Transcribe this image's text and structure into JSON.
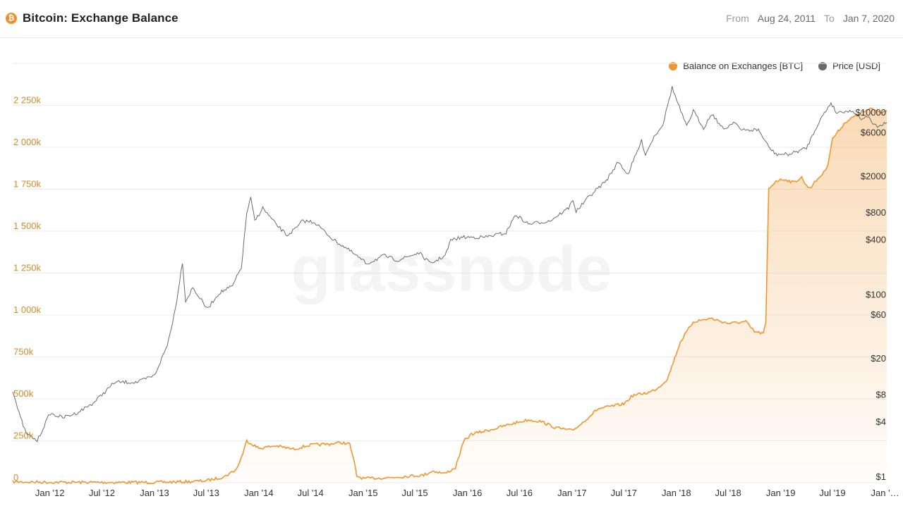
{
  "header": {
    "title": "Bitcoin: Exchange Balance",
    "from_label": "From",
    "from_value": "Aug 24, 2011",
    "to_label": "To",
    "to_value": "Jan 7, 2020"
  },
  "watermark": "glassnode",
  "colors": {
    "balance": "#f0962e",
    "price": "#6b6b6b",
    "grid": "#ececef",
    "left_axis": "#d38a2c"
  },
  "chart_data": {
    "type": "line",
    "legend": [
      "Balance on Exchanges [BTC]",
      "Price [USD]"
    ],
    "legend_position": "top-right",
    "grid": true,
    "x_ticks": [
      "Jan '12",
      "Jul '12",
      "Jan '13",
      "Jul '13",
      "Jan '14",
      "Jul '14",
      "Jan '15",
      "Jul '15",
      "Jan '16",
      "Jul '16",
      "Jan '17",
      "Jul '17",
      "Jan '18",
      "Jul '18",
      "Jan '19",
      "Jul '19",
      "Jan '…"
    ],
    "y_left": {
      "ticks": [
        0,
        250000,
        500000,
        750000,
        1000000,
        1250000,
        1500000,
        1750000,
        2000000,
        2250000
      ],
      "tick_labels": [
        "0",
        "250k",
        "500k",
        "750k",
        "1 000k",
        "1 250k",
        "1 500k",
        "1 750k",
        "2 000k",
        "2 250k"
      ],
      "ylim": [
        0,
        2500000
      ]
    },
    "y_right": {
      "scale": "log",
      "ticks": [
        1,
        4,
        8,
        20,
        60,
        100,
        400,
        800,
        2000,
        6000,
        10000
      ],
      "tick_labels": [
        "$1",
        "$4",
        "$8",
        "$20",
        "$60",
        "$100",
        "$400",
        "$800",
        "$2000",
        "$6000",
        "$10000"
      ]
    },
    "series": [
      {
        "name": "Balance on Exchanges [BTC]",
        "axis": "left",
        "fill": true,
        "x": [
          "2011-08-24",
          "2012-01-01",
          "2012-07-01",
          "2013-01-01",
          "2013-05-01",
          "2013-07-01",
          "2013-09-01",
          "2013-10-15",
          "2013-11-01",
          "2013-11-20",
          "2014-01-01",
          "2014-03-01",
          "2014-05-01",
          "2014-07-01",
          "2014-09-01",
          "2014-10-15",
          "2014-11-15",
          "2014-12-01",
          "2014-12-10",
          "2015-01-01",
          "2015-04-01",
          "2015-06-15",
          "2015-08-01",
          "2015-09-01",
          "2015-10-15",
          "2015-11-20",
          "2015-12-20",
          "2016-01-15",
          "2016-04-01",
          "2016-06-01",
          "2016-08-01",
          "2016-09-15",
          "2016-11-01",
          "2017-01-01",
          "2017-02-01",
          "2017-04-01",
          "2017-06-01",
          "2017-07-01",
          "2017-08-01",
          "2017-10-01",
          "2017-11-01",
          "2017-12-01",
          "2018-01-15",
          "2018-03-01",
          "2018-05-01",
          "2018-07-01",
          "2018-09-01",
          "2018-10-01",
          "2018-11-01",
          "2018-11-10",
          "2018-11-20",
          "2018-12-15",
          "2019-01-15",
          "2019-02-15",
          "2019-03-15",
          "2019-04-01",
          "2019-04-15",
          "2019-05-15",
          "2019-06-01",
          "2019-06-15",
          "2019-07-01",
          "2019-08-15",
          "2019-10-01",
          "2019-11-15",
          "2019-12-15",
          "2020-01-07"
        ],
        "values": [
          5000,
          3000,
          2000,
          2000,
          6000,
          12000,
          35000,
          80000,
          150000,
          250000,
          205000,
          220000,
          200000,
          225000,
          230000,
          240000,
          230000,
          120000,
          40000,
          25000,
          30000,
          40000,
          45000,
          70000,
          55000,
          90000,
          250000,
          290000,
          320000,
          350000,
          375000,
          365000,
          330000,
          310000,
          350000,
          440000,
          460000,
          470000,
          520000,
          540000,
          570000,
          620000,
          840000,
          960000,
          980000,
          950000,
          960000,
          900000,
          890000,
          950000,
          1750000,
          1800000,
          1810000,
          1790000,
          1820000,
          1770000,
          1760000,
          1820000,
          1850000,
          1900000,
          2050000,
          2150000,
          2200000,
          2230000,
          2210000,
          2220000
        ]
      },
      {
        "name": "Price [USD]",
        "axis": "right",
        "x": [
          "2011-08-24",
          "2011-09-15",
          "2011-10-10",
          "2011-11-18",
          "2012-01-01",
          "2012-02-15",
          "2012-04-01",
          "2012-06-01",
          "2012-08-15",
          "2012-11-01",
          "2013-01-01",
          "2013-02-15",
          "2013-03-15",
          "2013-04-09",
          "2013-04-20",
          "2013-05-15",
          "2013-07-05",
          "2013-08-15",
          "2013-10-01",
          "2013-11-01",
          "2013-11-20",
          "2013-12-04",
          "2013-12-18",
          "2014-01-15",
          "2014-03-01",
          "2014-04-10",
          "2014-05-15",
          "2014-06-03",
          "2014-07-15",
          "2014-09-20",
          "2014-11-01",
          "2015-01-14",
          "2015-03-15",
          "2015-05-01",
          "2015-07-15",
          "2015-08-25",
          "2015-10-15",
          "2015-11-04",
          "2015-12-15",
          "2016-03-01",
          "2016-05-15",
          "2016-06-17",
          "2016-08-01",
          "2016-10-15",
          "2016-12-20",
          "2017-01-04",
          "2017-01-15",
          "2017-03-01",
          "2017-05-01",
          "2017-06-12",
          "2017-07-15",
          "2017-09-01",
          "2017-09-15",
          "2017-10-15",
          "2017-11-15",
          "2017-12-17",
          "2018-01-01",
          "2018-02-06",
          "2018-03-01",
          "2018-04-06",
          "2018-05-05",
          "2018-06-15",
          "2018-07-25",
          "2018-08-15",
          "2018-10-15",
          "2018-11-20",
          "2018-12-15",
          "2019-02-01",
          "2019-04-01",
          "2019-05-15",
          "2019-06-26",
          "2019-07-15",
          "2019-08-15",
          "2019-09-15",
          "2019-10-15",
          "2019-10-26",
          "2019-11-25",
          "2019-12-15",
          "2020-01-07"
        ],
        "values": [
          9,
          5,
          3,
          2.5,
          5,
          4.5,
          5,
          6.5,
          11,
          11,
          13,
          28,
          70,
          230,
          85,
          120,
          70,
          105,
          125,
          200,
          800,
          1150,
          650,
          900,
          600,
          450,
          550,
          650,
          630,
          400,
          330,
          220,
          270,
          240,
          290,
          220,
          270,
          400,
          430,
          430,
          480,
          760,
          600,
          650,
          900,
          1120,
          820,
          1200,
          1800,
          2900,
          2100,
          4900,
          3500,
          5500,
          7500,
          19000,
          14000,
          7000,
          10500,
          6800,
          9800,
          6500,
          8100,
          6400,
          6500,
          4200,
          3500,
          3500,
          4100,
          8000,
          12900,
          10000,
          10500,
          10200,
          8300,
          9500,
          7200,
          7100,
          7800
        ]
      }
    ]
  }
}
